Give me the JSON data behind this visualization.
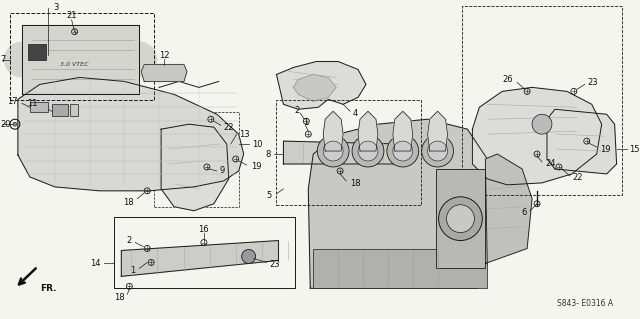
{
  "bg_color": "#f5f5f0",
  "diagram_code": "S843- E0316 A",
  "figsize": [
    6.4,
    3.19
  ],
  "dpi": 100,
  "label_fontsize": 6,
  "lc": "#1a1a1a",
  "lw": 0.7
}
